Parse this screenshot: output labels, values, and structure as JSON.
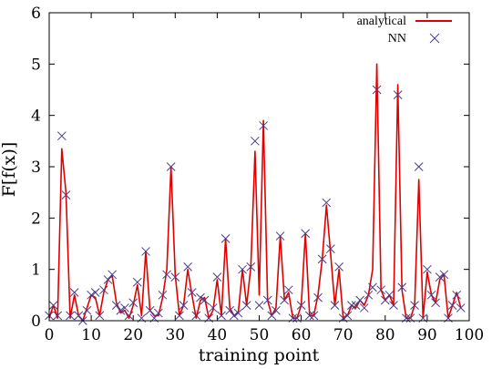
{
  "chart_data": {
    "type": "line",
    "xlabel": "training point",
    "ylabel": "F[f(x)]",
    "xlim": [
      0,
      100
    ],
    "ylim": [
      0,
      6
    ],
    "x_ticks": [
      0,
      10,
      20,
      30,
      40,
      50,
      60,
      70,
      80,
      90,
      100
    ],
    "y_ticks": [
      0,
      1,
      2,
      3,
      4,
      5,
      6
    ],
    "grid": false,
    "legend_position": "top-right",
    "series": [
      {
        "name": "analytical",
        "style": "line",
        "color": "#e00000",
        "x": [
          0,
          1,
          2,
          3,
          4,
          5,
          6,
          7,
          8,
          9,
          10,
          11,
          12,
          13,
          14,
          15,
          16,
          17,
          18,
          19,
          20,
          21,
          22,
          23,
          24,
          25,
          26,
          27,
          28,
          29,
          30,
          31,
          32,
          33,
          34,
          35,
          36,
          37,
          38,
          39,
          40,
          41,
          42,
          43,
          44,
          45,
          46,
          47,
          48,
          49,
          50,
          51,
          52,
          53,
          54,
          55,
          56,
          57,
          58,
          59,
          60,
          61,
          62,
          63,
          64,
          65,
          66,
          67,
          68,
          69,
          70,
          71,
          72,
          73,
          74,
          75,
          76,
          77,
          78,
          79,
          80,
          81,
          82,
          83,
          84,
          85,
          86,
          87,
          88,
          89,
          90,
          91,
          92,
          93,
          94,
          95,
          96,
          97,
          98
        ],
        "y": [
          0.05,
          0.3,
          0.05,
          3.35,
          2.5,
          0.05,
          0.5,
          0.1,
          0.0,
          0.25,
          0.5,
          0.45,
          0.1,
          0.55,
          0.8,
          0.88,
          0.35,
          0.15,
          0.2,
          0.05,
          0.3,
          0.7,
          0.1,
          1.35,
          0.2,
          0.1,
          0.1,
          0.45,
          1.0,
          3.0,
          0.9,
          0.1,
          0.3,
          1.0,
          0.5,
          0.05,
          0.4,
          0.45,
          0.05,
          0.2,
          0.8,
          0.1,
          1.6,
          0.25,
          0.1,
          0.15,
          1.0,
          0.3,
          1.05,
          3.3,
          0.5,
          3.9,
          0.4,
          0.1,
          0.25,
          1.65,
          0.4,
          0.55,
          0.05,
          0.05,
          0.3,
          1.7,
          0.1,
          0.1,
          0.5,
          1.2,
          2.25,
          1.3,
          0.3,
          1.0,
          0.05,
          0.1,
          0.3,
          0.25,
          0.4,
          0.3,
          0.5,
          1.0,
          5.0,
          0.6,
          0.4,
          0.5,
          0.3,
          4.6,
          0.6,
          0.05,
          0.05,
          0.3,
          2.75,
          0.05,
          0.95,
          0.5,
          0.35,
          0.8,
          0.9,
          0.05,
          0.3,
          0.55,
          0.25
        ]
      },
      {
        "name": "NN",
        "style": "markers",
        "color": "#4a3c8c",
        "x": [
          0,
          1,
          2,
          3,
          4,
          5,
          6,
          7,
          8,
          9,
          10,
          11,
          12,
          13,
          14,
          15,
          16,
          17,
          18,
          19,
          20,
          21,
          22,
          23,
          24,
          25,
          26,
          27,
          28,
          29,
          30,
          31,
          32,
          33,
          34,
          35,
          36,
          37,
          38,
          39,
          40,
          41,
          42,
          43,
          44,
          45,
          46,
          47,
          48,
          49,
          50,
          51,
          52,
          53,
          54,
          55,
          56,
          57,
          58,
          59,
          60,
          61,
          62,
          63,
          64,
          65,
          66,
          67,
          68,
          69,
          70,
          71,
          72,
          73,
          74,
          75,
          76,
          77,
          78,
          79,
          80,
          81,
          82,
          83,
          84,
          85,
          86,
          87,
          88,
          89,
          90,
          91,
          92,
          93,
          94,
          95,
          96,
          97,
          98
        ],
        "y": [
          0.1,
          0.3,
          0.1,
          3.6,
          2.45,
          0.1,
          0.55,
          0.1,
          0.0,
          0.2,
          0.5,
          0.55,
          0.1,
          0.6,
          0.8,
          0.9,
          0.3,
          0.2,
          0.25,
          0.1,
          0.35,
          0.75,
          0.05,
          1.35,
          0.2,
          0.05,
          0.15,
          0.5,
          0.9,
          3.0,
          0.85,
          0.1,
          0.3,
          1.05,
          0.55,
          0.1,
          0.45,
          0.4,
          0.05,
          0.25,
          0.85,
          0.1,
          1.6,
          0.2,
          0.1,
          0.15,
          1.0,
          0.3,
          1.05,
          3.5,
          0.3,
          3.8,
          0.4,
          0.1,
          0.2,
          1.65,
          0.4,
          0.6,
          0.05,
          0.05,
          0.3,
          1.7,
          0.1,
          0.1,
          0.45,
          1.2,
          2.3,
          1.4,
          0.3,
          1.05,
          0.05,
          0.1,
          0.3,
          0.3,
          0.4,
          0.25,
          0.5,
          0.65,
          4.5,
          0.6,
          0.4,
          0.5,
          0.3,
          4.4,
          0.65,
          0.05,
          0.05,
          0.3,
          3.0,
          0.05,
          1.0,
          0.5,
          0.35,
          0.85,
          0.9,
          0.05,
          0.3,
          0.5,
          0.25
        ]
      }
    ]
  }
}
